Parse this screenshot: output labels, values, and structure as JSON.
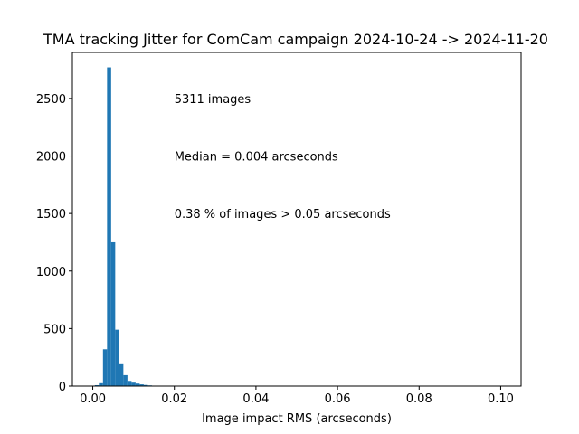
{
  "chart_data": {
    "type": "bar",
    "title": "TMA tracking Jitter for ComCam campaign 2024-10-24 -> 2024-11-20",
    "xlabel": "Image impact RMS (arcseconds)",
    "ylabel": "",
    "xlim": [
      -0.005,
      0.105
    ],
    "ylim": [
      0,
      2900
    ],
    "xticks": [
      "0.00",
      "0.02",
      "0.04",
      "0.06",
      "0.08",
      "0.10"
    ],
    "yticks": [
      "0",
      "500",
      "1000",
      "1500",
      "2000",
      "2500"
    ],
    "bin_width": 0.001,
    "bins": [
      {
        "x": 0.001,
        "count": 8
      },
      {
        "x": 0.002,
        "count": 25
      },
      {
        "x": 0.003,
        "count": 320
      },
      {
        "x": 0.004,
        "count": 2770
      },
      {
        "x": 0.005,
        "count": 1250
      },
      {
        "x": 0.006,
        "count": 490
      },
      {
        "x": 0.007,
        "count": 190
      },
      {
        "x": 0.008,
        "count": 95
      },
      {
        "x": 0.009,
        "count": 45
      },
      {
        "x": 0.01,
        "count": 30
      },
      {
        "x": 0.011,
        "count": 22
      },
      {
        "x": 0.012,
        "count": 15
      },
      {
        "x": 0.013,
        "count": 10
      },
      {
        "x": 0.014,
        "count": 6
      },
      {
        "x": 0.015,
        "count": 3
      },
      {
        "x": 0.016,
        "count": 2
      },
      {
        "x": 0.017,
        "count": 1
      }
    ],
    "annotations": {
      "image_count": "5311 images",
      "median": "Median = 0.004 arcseconds",
      "fraction_above": "0.38 % of images > 0.05 arcseconds"
    },
    "annotation_positions": [
      {
        "key": "image_count",
        "x": 0.02,
        "y": 2500
      },
      {
        "key": "median",
        "x": 0.02,
        "y": 2000
      },
      {
        "key": "fraction_above",
        "x": 0.02,
        "y": 1500
      }
    ],
    "bar_color": "#1f77b4",
    "grid": false
  }
}
